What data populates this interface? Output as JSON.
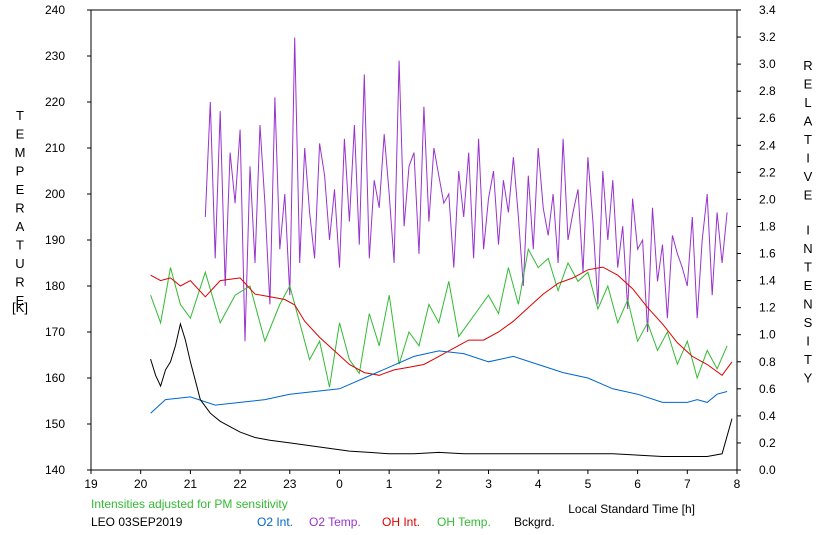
{
  "chart_data": {
    "type": "line",
    "left_axis_label": "TEMPERATURE",
    "left_axis_unit": "[K]",
    "right_axis_label": "RELATIVE INTENSITY",
    "xlabel": "Local Standard Time [h]",
    "note": "Intensities adjusted for PM sensitivity",
    "station_date": "LEO 03SEP2019",
    "x_ticks": [
      "19",
      "20",
      "21",
      "22",
      "23",
      "0",
      "1",
      "2",
      "3",
      "4",
      "5",
      "6",
      "7",
      "8"
    ],
    "left_ticks": [
      "140",
      "150",
      "160",
      "170",
      "180",
      "190",
      "200",
      "210",
      "220",
      "230",
      "240"
    ],
    "right_ticks": [
      "0.0",
      "0.2",
      "0.4",
      "0.6",
      "0.8",
      "1.0",
      "1.2",
      "1.4",
      "1.6",
      "1.8",
      "2.0",
      "2.2",
      "2.4",
      "2.6",
      "2.8",
      "3.0",
      "3.2",
      "3.4"
    ],
    "xlim": [
      19,
      32
    ],
    "ylim_left": [
      140,
      240
    ],
    "ylim_right": [
      0.0,
      3.4
    ],
    "grid": false,
    "series": [
      {
        "name": "O2 Int.",
        "axis": "right",
        "color": "#0066cc",
        "x": [
          20.2,
          20.5,
          21.0,
          21.5,
          22.0,
          22.5,
          23.0,
          23.5,
          24.0,
          24.5,
          25.0,
          25.5,
          26.0,
          26.5,
          27.0,
          27.5,
          28.0,
          28.5,
          29.0,
          29.5,
          30.0,
          30.5,
          31.0,
          31.2,
          31.4,
          31.6,
          31.8
        ],
        "y": [
          0.42,
          0.52,
          0.54,
          0.48,
          0.5,
          0.52,
          0.56,
          0.58,
          0.6,
          0.68,
          0.76,
          0.84,
          0.88,
          0.86,
          0.8,
          0.84,
          0.78,
          0.72,
          0.68,
          0.6,
          0.56,
          0.5,
          0.5,
          0.52,
          0.5,
          0.56,
          0.58
        ]
      },
      {
        "name": "O2 Temp.",
        "axis": "left",
        "color": "#9933cc",
        "x": [
          21.3,
          21.4,
          21.5,
          21.6,
          21.7,
          21.8,
          21.9,
          22.0,
          22.1,
          22.2,
          22.3,
          22.4,
          22.5,
          22.6,
          22.7,
          22.8,
          22.9,
          23.0,
          23.1,
          23.2,
          23.3,
          23.4,
          23.5,
          23.6,
          23.7,
          23.8,
          23.9,
          24.0,
          24.1,
          24.2,
          24.3,
          24.4,
          24.5,
          24.6,
          24.7,
          24.8,
          24.9,
          25.0,
          25.1,
          25.2,
          25.3,
          25.4,
          25.5,
          25.6,
          25.7,
          25.8,
          25.9,
          26.0,
          26.1,
          26.2,
          26.3,
          26.4,
          26.5,
          26.6,
          26.7,
          26.8,
          26.9,
          27.0,
          27.1,
          27.2,
          27.3,
          27.4,
          27.5,
          27.6,
          27.7,
          27.8,
          27.9,
          28.0,
          28.1,
          28.2,
          28.3,
          28.4,
          28.5,
          28.6,
          28.7,
          28.8,
          28.9,
          29.0,
          29.1,
          29.2,
          29.3,
          29.4,
          29.5,
          29.6,
          29.7,
          29.8,
          29.9,
          30.0,
          30.1,
          30.2,
          30.3,
          30.4,
          30.5,
          30.6,
          30.7,
          30.8,
          30.9,
          31.0,
          31.1,
          31.2,
          31.3,
          31.4,
          31.5,
          31.6,
          31.7,
          31.8
        ],
        "y": [
          195,
          220,
          186,
          218,
          180,
          209,
          198,
          214,
          168,
          206,
          185,
          215,
          198,
          176,
          221,
          188,
          200,
          178,
          234,
          185,
          210,
          196,
          186,
          211,
          204,
          190,
          201,
          184,
          212,
          194,
          215,
          189,
          226,
          186,
          203,
          197,
          213,
          200,
          185,
          229,
          193,
          206,
          209,
          187,
          219,
          194,
          210,
          204,
          198,
          200,
          184,
          205,
          195,
          209,
          186,
          212,
          188,
          199,
          205,
          189,
          203,
          196,
          208,
          195,
          180,
          204,
          188,
          210,
          197,
          191,
          200,
          185,
          212,
          190,
          196,
          201,
          183,
          208,
          194,
          176,
          205,
          190,
          203,
          184,
          193,
          175,
          199,
          188,
          190,
          170,
          197,
          181,
          189,
          173,
          191,
          187,
          184,
          180,
          195,
          173,
          190,
          200,
          178,
          196,
          185,
          196
        ]
      },
      {
        "name": "OH Int.",
        "axis": "right",
        "color": "#dd0000",
        "x": [
          20.2,
          20.4,
          20.6,
          20.8,
          21.0,
          21.3,
          21.6,
          22.0,
          22.3,
          22.6,
          22.9,
          23.1,
          23.3,
          23.6,
          23.9,
          24.2,
          24.5,
          24.8,
          25.1,
          25.4,
          25.7,
          26.0,
          26.3,
          26.6,
          26.9,
          27.2,
          27.5,
          27.8,
          28.1,
          28.4,
          28.7,
          29.0,
          29.3,
          29.6,
          29.9,
          30.2,
          30.5,
          30.8,
          31.1,
          31.4,
          31.7,
          31.9
        ],
        "y": [
          1.44,
          1.4,
          1.42,
          1.36,
          1.4,
          1.28,
          1.4,
          1.42,
          1.3,
          1.28,
          1.26,
          1.22,
          1.1,
          0.98,
          0.88,
          0.78,
          0.72,
          0.7,
          0.74,
          0.76,
          0.78,
          0.84,
          0.9,
          0.96,
          0.96,
          1.02,
          1.1,
          1.2,
          1.3,
          1.38,
          1.42,
          1.48,
          1.5,
          1.44,
          1.34,
          1.2,
          1.08,
          0.94,
          0.84,
          0.78,
          0.7,
          0.8
        ]
      },
      {
        "name": "OH Temp.",
        "axis": "left",
        "color": "#33bb33",
        "x": [
          20.2,
          20.4,
          20.6,
          20.8,
          21.0,
          21.3,
          21.6,
          21.9,
          22.2,
          22.5,
          22.8,
          23.0,
          23.2,
          23.4,
          23.6,
          23.8,
          24.0,
          24.2,
          24.4,
          24.6,
          24.8,
          25.0,
          25.2,
          25.4,
          25.6,
          25.8,
          26.0,
          26.2,
          26.4,
          26.6,
          26.8,
          27.0,
          27.2,
          27.4,
          27.6,
          27.8,
          28.0,
          28.2,
          28.4,
          28.6,
          28.8,
          29.0,
          29.2,
          29.4,
          29.6,
          29.8,
          30.0,
          30.2,
          30.4,
          30.6,
          30.8,
          31.0,
          31.2,
          31.4,
          31.6,
          31.8
        ],
        "y": [
          178,
          172,
          184,
          176,
          173,
          183,
          172,
          178,
          180,
          168,
          176,
          180,
          172,
          164,
          168,
          158,
          172,
          164,
          161,
          174,
          167,
          178,
          163,
          170,
          167,
          176,
          172,
          181,
          169,
          172,
          175,
          178,
          174,
          184,
          176,
          188,
          184,
          186,
          179,
          185,
          181,
          183,
          175,
          180,
          172,
          177,
          168,
          172,
          166,
          170,
          163,
          168,
          160,
          166,
          162,
          167
        ]
      },
      {
        "name": "Bckgrd.",
        "axis": "right",
        "color": "#000000",
        "x": [
          20.2,
          20.3,
          20.4,
          20.5,
          20.6,
          20.7,
          20.8,
          20.9,
          21.0,
          21.1,
          21.2,
          21.4,
          21.6,
          21.8,
          22.0,
          22.3,
          22.6,
          23.0,
          23.4,
          23.8,
          24.2,
          24.6,
          25.0,
          25.5,
          26.0,
          26.5,
          27.0,
          27.5,
          28.0,
          28.5,
          29.0,
          29.5,
          30.0,
          30.5,
          31.0,
          31.4,
          31.7,
          31.9
        ],
        "y": [
          0.82,
          0.7,
          0.62,
          0.74,
          0.8,
          0.92,
          1.08,
          0.96,
          0.8,
          0.66,
          0.52,
          0.42,
          0.36,
          0.32,
          0.28,
          0.24,
          0.22,
          0.2,
          0.18,
          0.16,
          0.14,
          0.13,
          0.12,
          0.12,
          0.13,
          0.12,
          0.12,
          0.12,
          0.12,
          0.12,
          0.12,
          0.12,
          0.11,
          0.1,
          0.1,
          0.1,
          0.12,
          0.38
        ]
      }
    ]
  }
}
